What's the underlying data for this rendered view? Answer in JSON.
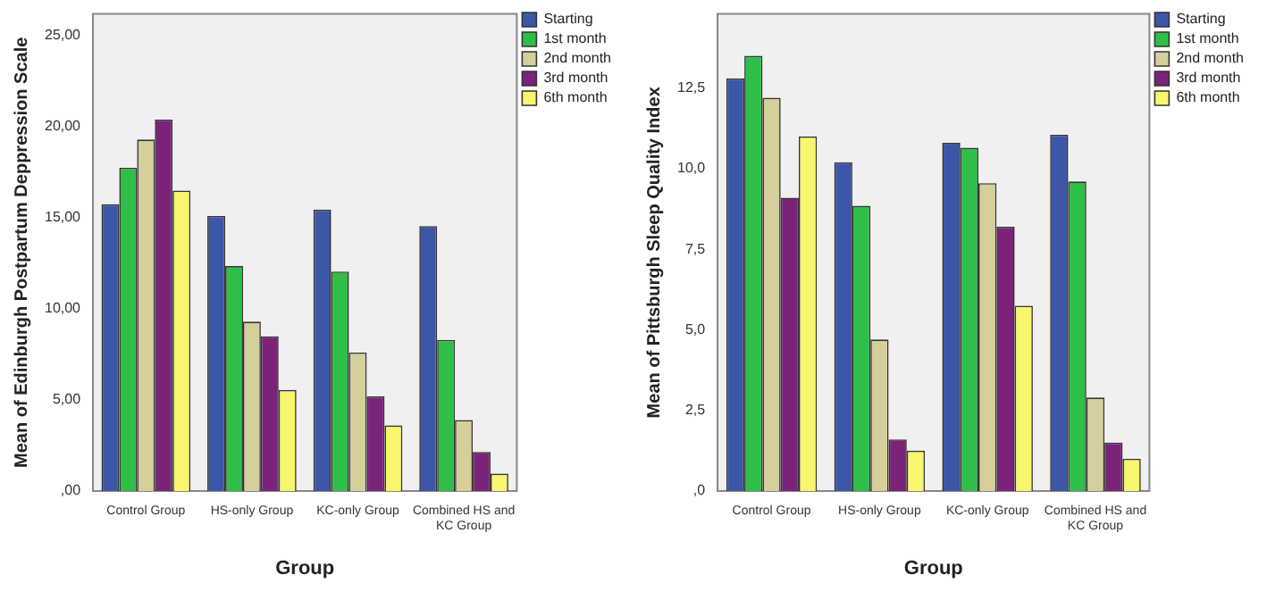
{
  "chart_data": [
    {
      "type": "bar",
      "xlabel": "Group",
      "ylabel": "Mean of Edinburgh Postpartum Deppression Scale",
      "categories": [
        "Control Group",
        "HS-only Group",
        "KC-only Group",
        "Combined HS and KC Group"
      ],
      "series": [
        {
          "name": "Starting",
          "color": "#3c57a8",
          "values": [
            15.75,
            15.1,
            15.45,
            14.55
          ]
        },
        {
          "name": "1st month",
          "color": "#2fbf48",
          "values": [
            17.75,
            12.35,
            12.05,
            8.3
          ]
        },
        {
          "name": "2nd month",
          "color": "#d4cf9b",
          "values": [
            19.3,
            9.3,
            7.6,
            3.9
          ]
        },
        {
          "name": "3rd month",
          "color": "#7b2279",
          "values": [
            20.4,
            8.5,
            5.2,
            2.15
          ]
        },
        {
          "name": "6th month",
          "color": "#f8f56e",
          "values": [
            16.5,
            5.55,
            3.6,
            0.95
          ]
        }
      ],
      "ylim": [
        0,
        26.2
      ],
      "yticks": [
        {
          "value": 0,
          "label": ",00"
        },
        {
          "value": 5,
          "label": "5,00"
        },
        {
          "value": 10,
          "label": "10,00"
        },
        {
          "value": 15,
          "label": "15,00"
        },
        {
          "value": 20,
          "label": "20,00"
        },
        {
          "value": 25,
          "label": "25,00"
        }
      ],
      "grid": false,
      "legend": "right"
    },
    {
      "type": "bar",
      "xlabel": "Group",
      "ylabel": "Mean of Pittsburgh Sleep Quality Index",
      "categories": [
        "Control Group",
        "HS-only Group",
        "KC-only Group",
        "Combined HS and KC Group"
      ],
      "series": [
        {
          "name": "Starting",
          "color": "#3c57a8",
          "values": [
            12.8,
            10.2,
            10.8,
            11.05
          ]
        },
        {
          "name": "1st month",
          "color": "#2fbf48",
          "values": [
            13.5,
            8.85,
            10.65,
            9.6
          ]
        },
        {
          "name": "2nd month",
          "color": "#d4cf9b",
          "values": [
            12.2,
            4.7,
            9.55,
            2.9
          ]
        },
        {
          "name": "3rd month",
          "color": "#7b2279",
          "values": [
            9.1,
            1.6,
            8.2,
            1.5
          ]
        },
        {
          "name": "6th month",
          "color": "#f8f56e",
          "values": [
            11,
            1.25,
            5.75,
            1
          ]
        }
      ],
      "ylim": [
        0,
        14.8
      ],
      "yticks": [
        {
          "value": 0,
          "label": ",0"
        },
        {
          "value": 2.5,
          "label": "2,5"
        },
        {
          "value": 5,
          "label": "5,0"
        },
        {
          "value": 7.5,
          "label": "7,5"
        },
        {
          "value": 10,
          "label": "10,0"
        },
        {
          "value": 12.5,
          "label": "12,5"
        }
      ],
      "grid": false,
      "legend": "right"
    }
  ]
}
